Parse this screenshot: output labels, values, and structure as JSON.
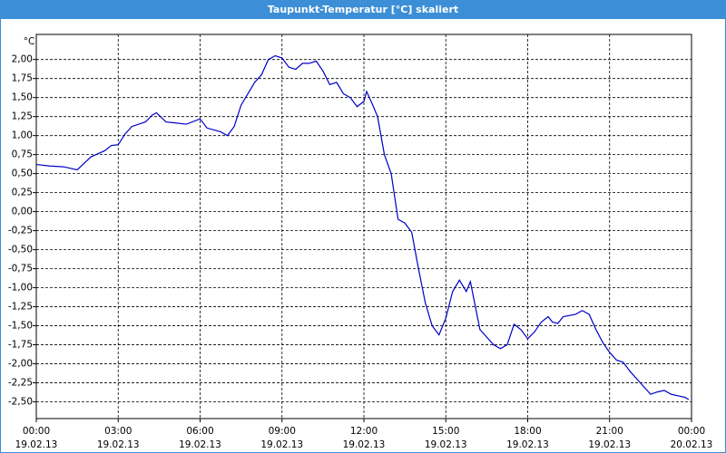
{
  "window_title": "Taupunkt-Temperatur [°C] skaliert",
  "chart_data": {
    "type": "line",
    "y_label": "°C",
    "color": "#0000c8",
    "grid": true,
    "xlim": [
      0,
      24
    ],
    "ylim": [
      -2.72,
      2.33
    ],
    "xticks": [
      {
        "value": 0,
        "label": "00:00",
        "date": "19.02.13"
      },
      {
        "value": 3,
        "label": "03:00",
        "date": "19.02.13"
      },
      {
        "value": 6,
        "label": "06:00",
        "date": "19.02.13"
      },
      {
        "value": 9,
        "label": "09:00",
        "date": "19.02.13"
      },
      {
        "value": 12,
        "label": "12:00",
        "date": "19.02.13"
      },
      {
        "value": 15,
        "label": "15:00",
        "date": "19.02.13"
      },
      {
        "value": 18,
        "label": "18:00",
        "date": "19.02.13"
      },
      {
        "value": 21,
        "label": "21:00",
        "date": "19.02.13"
      },
      {
        "value": 24,
        "label": "00:00",
        "date": "20.02.13"
      }
    ],
    "yticks": [
      {
        "value": 2,
        "label": "2,00"
      },
      {
        "value": 1.75,
        "label": "1,75"
      },
      {
        "value": 1.5,
        "label": "1,50"
      },
      {
        "value": 1.25,
        "label": "1,25"
      },
      {
        "value": 1,
        "label": "1,00"
      },
      {
        "value": 0.75,
        "label": "0,75"
      },
      {
        "value": 0.5,
        "label": "0,50"
      },
      {
        "value": 0.25,
        "label": "0,25"
      },
      {
        "value": 0,
        "label": "0,00"
      },
      {
        "value": -0.25,
        "label": "-0,25"
      },
      {
        "value": -0.5,
        "label": "-0,50"
      },
      {
        "value": -0.75,
        "label": "-0,75"
      },
      {
        "value": -1,
        "label": "-1,00"
      },
      {
        "value": -1.25,
        "label": "-1,25"
      },
      {
        "value": -1.5,
        "label": "-1,50"
      },
      {
        "value": -1.75,
        "label": "-1,75"
      },
      {
        "value": -2,
        "label": "-2,00"
      },
      {
        "value": -2.25,
        "label": "-2,25"
      },
      {
        "value": -2.5,
        "label": "-2,50"
      }
    ],
    "x": [
      0,
      0.5,
      1,
      1.5,
      2,
      2.5,
      2.75,
      3,
      3.25,
      3.5,
      4,
      4.25,
      4.4,
      4.75,
      5,
      5.5,
      6,
      6.25,
      6.75,
      7,
      7.25,
      7.5,
      8,
      8.25,
      8.5,
      8.75,
      9,
      9.25,
      9.5,
      9.75,
      10,
      10.25,
      10.5,
      10.75,
      11,
      11.25,
      11.5,
      11.75,
      12,
      12.1,
      12.3,
      12.5,
      12.75,
      13,
      13.25,
      13.5,
      13.75,
      14,
      14.25,
      14.5,
      14.75,
      15,
      15.25,
      15.5,
      15.75,
      15.9,
      16.25,
      16.75,
      17,
      17.25,
      17.5,
      17.75,
      18,
      18.25,
      18.5,
      18.75,
      18.9,
      19.1,
      19.3,
      19.75,
      20,
      20.25,
      20.5,
      20.75,
      21,
      21.25,
      21.5,
      21.75,
      22,
      22.25,
      22.5,
      22.75,
      23,
      23.25,
      23.5,
      23.75,
      23.9
    ],
    "values": [
      0.62,
      0.6,
      0.59,
      0.55,
      0.72,
      0.8,
      0.87,
      0.88,
      1.02,
      1.12,
      1.18,
      1.27,
      1.3,
      1.18,
      1.17,
      1.15,
      1.22,
      1.1,
      1.05,
      1.0,
      1.12,
      1.4,
      1.7,
      1.8,
      2.0,
      2.05,
      2.02,
      1.9,
      1.87,
      1.95,
      1.95,
      1.98,
      1.85,
      1.67,
      1.7,
      1.55,
      1.5,
      1.38,
      1.45,
      1.58,
      1.42,
      1.25,
      0.75,
      0.5,
      -0.1,
      -0.15,
      -0.27,
      -0.75,
      -1.2,
      -1.5,
      -1.62,
      -1.4,
      -1.05,
      -0.9,
      -1.05,
      -0.92,
      -1.55,
      -1.75,
      -1.8,
      -1.75,
      -1.48,
      -1.55,
      -1.67,
      -1.58,
      -1.45,
      -1.38,
      -1.45,
      -1.47,
      -1.38,
      -1.35,
      -1.3,
      -1.35,
      -1.55,
      -1.72,
      -1.85,
      -1.95,
      -1.98,
      -2.1,
      -2.2,
      -2.3,
      -2.4,
      -2.37,
      -2.35,
      -2.4,
      -2.42,
      -2.44,
      -2.47
    ]
  }
}
